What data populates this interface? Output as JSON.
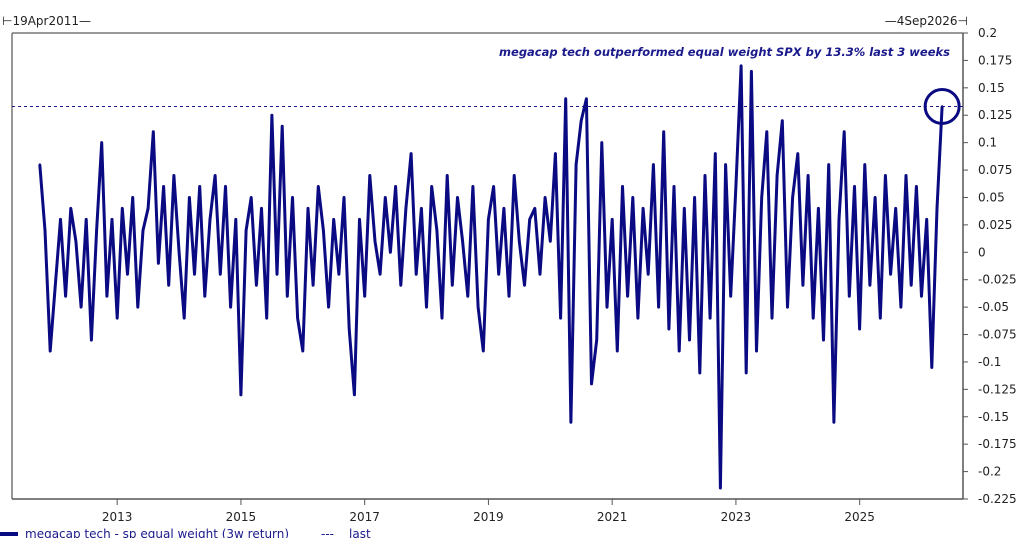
{
  "chart_data": {
    "type": "line",
    "title": "",
    "start_label": "19Apr2011",
    "end_label": "4Sep2026",
    "annotation": "megacap tech outperformed equal weight SPX by 13.3% last 3 weeks",
    "xlim": [
      2011.3,
      2026.67
    ],
    "ylim": [
      -0.225,
      0.2
    ],
    "x_ticks": [
      "2013",
      "2015",
      "2017",
      "2019",
      "2021",
      "2023",
      "2025"
    ],
    "y_ticks": [
      "0.2",
      "0.175",
      "0.15",
      "0.125",
      "0.1",
      "0.075",
      "0.05",
      "0.025",
      "0",
      "-0.025",
      "-0.05",
      "-0.075",
      "-0.1",
      "-0.125",
      "-0.15",
      "-0.175",
      "-0.2",
      "-0.225"
    ],
    "series": [
      {
        "name": "megacap tech - sp equal weight (3w return)",
        "color": "#0a0a82",
        "x_start": 2011.75,
        "x_step": 0.08333,
        "values": [
          0.08,
          0.02,
          -0.09,
          -0.03,
          0.03,
          -0.04,
          0.04,
          0.01,
          -0.05,
          0.03,
          -0.08,
          0.02,
          0.1,
          -0.04,
          0.03,
          -0.06,
          0.04,
          -0.02,
          0.05,
          -0.05,
          0.02,
          0.04,
          0.11,
          -0.01,
          0.06,
          -0.03,
          0.07,
          0.0,
          -0.06,
          0.05,
          -0.02,
          0.06,
          -0.04,
          0.03,
          0.07,
          -0.02,
          0.06,
          -0.05,
          0.03,
          -0.13,
          0.02,
          0.05,
          -0.03,
          0.04,
          -0.06,
          0.125,
          -0.02,
          0.115,
          -0.04,
          0.05,
          -0.06,
          -0.09,
          0.04,
          -0.03,
          0.06,
          0.02,
          -0.05,
          0.03,
          -0.02,
          0.05,
          -0.07,
          -0.13,
          0.03,
          -0.04,
          0.07,
          0.01,
          -0.02,
          0.05,
          0.0,
          0.06,
          -0.03,
          0.04,
          0.09,
          -0.02,
          0.04,
          -0.05,
          0.06,
          0.02,
          -0.06,
          0.07,
          -0.03,
          0.05,
          0.01,
          -0.04,
          0.06,
          -0.05,
          -0.09,
          0.03,
          0.06,
          -0.02,
          0.04,
          -0.04,
          0.07,
          0.01,
          -0.03,
          0.03,
          0.04,
          -0.02,
          0.05,
          0.01,
          0.09,
          -0.06,
          0.14,
          -0.155,
          0.08,
          0.12,
          0.14,
          -0.12,
          -0.08,
          0.1,
          -0.05,
          0.03,
          -0.09,
          0.06,
          -0.04,
          0.05,
          -0.06,
          0.04,
          -0.02,
          0.08,
          -0.05,
          0.11,
          -0.07,
          0.06,
          -0.09,
          0.04,
          -0.08,
          0.05,
          -0.11,
          0.07,
          -0.06,
          0.09,
          -0.215,
          0.08,
          -0.04,
          0.06,
          0.17,
          -0.11,
          0.165,
          -0.09,
          0.05,
          0.11,
          -0.06,
          0.07,
          0.12,
          -0.05,
          0.05,
          0.09,
          -0.03,
          0.07,
          -0.06,
          0.04,
          -0.08,
          0.08,
          -0.155,
          0.03,
          0.11,
          -0.04,
          0.06,
          -0.07,
          0.08,
          -0.03,
          0.05,
          -0.06,
          0.07,
          -0.02,
          0.04,
          -0.05,
          0.07,
          -0.03,
          0.06,
          -0.04,
          0.03,
          -0.105,
          0.04,
          0.133
        ]
      },
      {
        "name": "last",
        "value": 0.133,
        "style": "dashed",
        "color": "#1a1a8c"
      }
    ],
    "legend": {
      "placement": "bottom-left",
      "items": [
        "megacap tech - sp equal weight (3w return)",
        "last"
      ],
      "dash_glyph": "---"
    },
    "grid": false
  }
}
